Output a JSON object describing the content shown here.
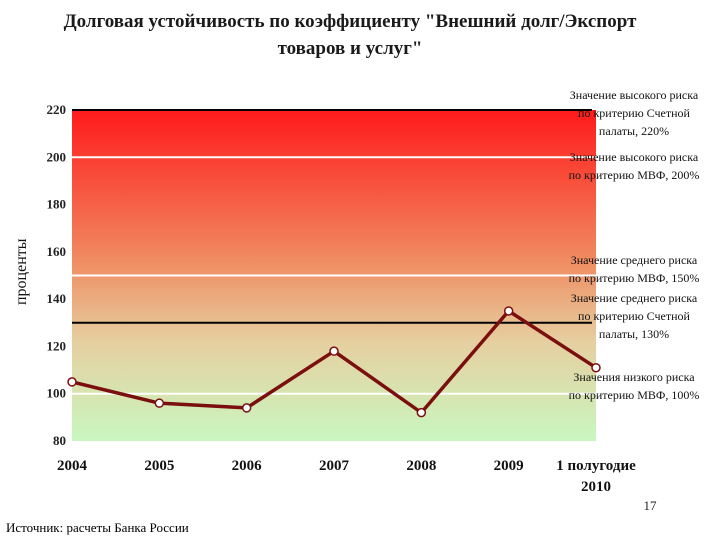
{
  "page_number": "17",
  "source": "Источник: расчеты Банка России",
  "colors": {
    "line": "#7b0e0e",
    "high_risk": "#ff1a1a",
    "mid": "#e6cfa0",
    "low_risk": "#c9f7c0"
  },
  "chart_data": {
    "type": "line",
    "title_lines": [
      "Долговая устойчивость по коэффициенту \"Внешний долг/Экспорт",
      "товаров и услуг\""
    ],
    "xlabel": "",
    "ylabel": "проценты",
    "categories": [
      {
        "label_lines": [
          "2004"
        ]
      },
      {
        "label_lines": [
          "2005"
        ]
      },
      {
        "label_lines": [
          "2006"
        ]
      },
      {
        "label_lines": [
          "2007"
        ]
      },
      {
        "label_lines": [
          "2008"
        ]
      },
      {
        "label_lines": [
          "2009"
        ]
      },
      {
        "label_lines": [
          "1 полугодие",
          "2010"
        ]
      }
    ],
    "values": [
      105,
      96,
      94,
      118,
      92,
      135,
      111
    ],
    "ylim": [
      80,
      220
    ],
    "yticks": [
      80,
      100,
      120,
      140,
      160,
      180,
      200,
      220
    ],
    "grid": false,
    "thresholds": [
      {
        "value": 220,
        "style": "black",
        "label_lines": [
          "Значение высокого риска",
          "по критерию Счетной",
          "палаты, 220%"
        ]
      },
      {
        "value": 200,
        "style": "white",
        "label_lines": [
          "Значение высокого риска",
          "по критерию МВФ, 200%"
        ]
      },
      {
        "value": 150,
        "style": "white",
        "label_lines": [
          "Значение среднего риска",
          "по критерию МВФ, 150%"
        ]
      },
      {
        "value": 130,
        "style": "black",
        "label_lines": [
          "Значение среднего риска",
          "по критерию Счетной",
          "палаты, 130%"
        ]
      },
      {
        "value": 100,
        "style": "white",
        "label_lines": [
          "Значения низкого риска",
          "по критерию МВФ, 100%"
        ]
      }
    ]
  }
}
